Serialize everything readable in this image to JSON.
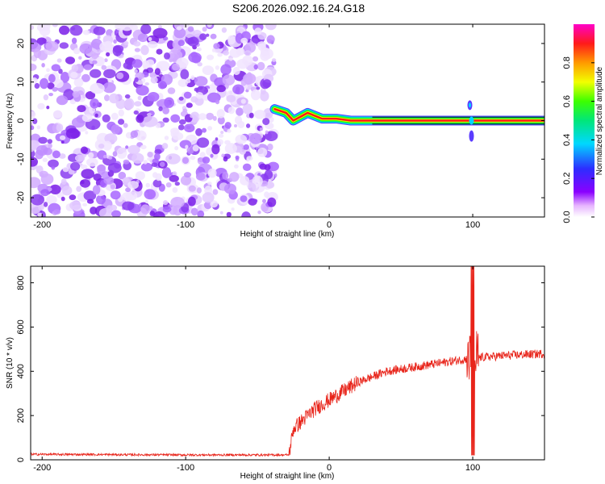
{
  "title": "S206.2026.092.16.24.G18",
  "colors": {
    "snr_line": "#e8241a",
    "noise_purple": "#8a3cf0",
    "frame": "#000000"
  },
  "chart_data": [
    {
      "type": "heatmap",
      "xlabel": "Height of straight line (km)",
      "ylabel": "Frequency (Hz)",
      "xlim": [
        -208,
        150
      ],
      "ylim": [
        -25,
        25
      ],
      "xticks": [
        -200,
        -100,
        0,
        100
      ],
      "yticks": [
        -20,
        -10,
        0,
        10,
        20
      ],
      "colorbar": {
        "label": "Normalized spectral amplitude",
        "range": [
          0,
          1
        ],
        "ticks": [
          0.0,
          0.2,
          0.4,
          0.6,
          0.8
        ],
        "tick_labels": [
          "0.0",
          "0.2",
          "0.4",
          "0.6",
          "0.8"
        ],
        "colormap": "rainbow (white-magenta-blue-cyan-green-yellow-red-magenta)"
      },
      "noise_region_x": [
        -208,
        -38
      ],
      "signal_track": [
        {
          "x": -38,
          "freq": 3
        },
        {
          "x": -30,
          "freq": 2
        },
        {
          "x": -25,
          "freq": 0
        },
        {
          "x": -15,
          "freq": 2
        },
        {
          "x": -5,
          "freq": 0.5
        },
        {
          "x": 5,
          "freq": 0.5
        },
        {
          "x": 15,
          "freq": 0
        },
        {
          "x": 30,
          "freq": 0
        },
        {
          "x": 150,
          "freq": 0
        }
      ],
      "disturbance_x": 98
    },
    {
      "type": "line",
      "xlabel": "Height of straight line (km)",
      "ylabel": "SNR (10 * v/v)",
      "xlim": [
        -208,
        150
      ],
      "ylim": [
        0,
        875
      ],
      "xticks": [
        -200,
        -100,
        0,
        100
      ],
      "yticks": [
        0,
        200,
        400,
        600,
        800
      ],
      "series_profile": [
        {
          "x": -208,
          "y": 25
        },
        {
          "x": -100,
          "y": 22
        },
        {
          "x": -28,
          "y": 22
        },
        {
          "x": -25,
          "y": 140
        },
        {
          "x": -10,
          "y": 230
        },
        {
          "x": 0,
          "y": 270
        },
        {
          "x": 20,
          "y": 350
        },
        {
          "x": 40,
          "y": 400
        },
        {
          "x": 60,
          "y": 420
        },
        {
          "x": 90,
          "y": 450
        },
        {
          "x": 100,
          "y": 460
        },
        {
          "x": 120,
          "y": 470
        },
        {
          "x": 150,
          "y": 480
        }
      ],
      "spike": {
        "x": 100,
        "y_max": 875,
        "y_min": 20
      }
    }
  ]
}
